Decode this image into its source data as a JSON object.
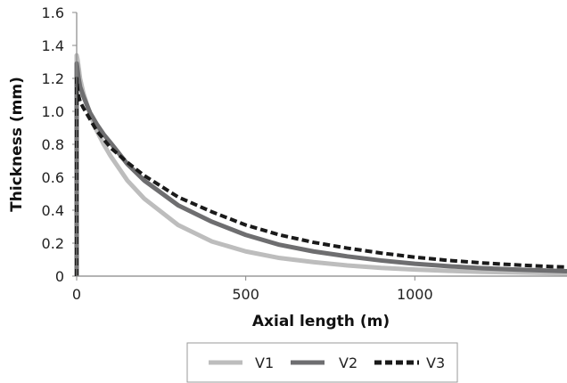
{
  "chart_data": {
    "type": "line",
    "title": "",
    "xlabel": "Axial length (m)",
    "ylabel": "Thickness (mm)",
    "xlim": [
      0,
      1450
    ],
    "ylim": [
      0,
      1.6
    ],
    "xticks": [
      0,
      500,
      1000
    ],
    "yticks": [
      0,
      0.2,
      0.4,
      0.6,
      0.8,
      1.0,
      1.2,
      1.4,
      1.6
    ],
    "ytick_labels": [
      "0",
      "0.2",
      "0.4",
      "0.6",
      "0.8",
      "1.0",
      "1.2",
      "1.4",
      "1.6"
    ],
    "grid": false,
    "legend_position": "bottom",
    "x": [
      0,
      2,
      5,
      10,
      20,
      40,
      60,
      80,
      100,
      150,
      200,
      300,
      400,
      500,
      600,
      700,
      800,
      900,
      1000,
      1100,
      1200,
      1300,
      1400,
      1450
    ],
    "series": [
      {
        "name": "V1",
        "color": "#bdbdbd",
        "style": "solid",
        "values": [
          1.34,
          1.32,
          1.28,
          1.2,
          1.11,
          0.98,
          0.88,
          0.8,
          0.73,
          0.58,
          0.47,
          0.31,
          0.21,
          0.15,
          0.11,
          0.085,
          0.065,
          0.05,
          0.04,
          0.032,
          0.026,
          0.022,
          0.018,
          0.017
        ]
      },
      {
        "name": "V2",
        "color": "#6e6e70",
        "style": "solid",
        "values": [
          1.29,
          1.26,
          1.21,
          1.15,
          1.09,
          0.99,
          0.92,
          0.86,
          0.81,
          0.68,
          0.58,
          0.43,
          0.33,
          0.25,
          0.19,
          0.15,
          0.12,
          0.095,
          0.075,
          0.06,
          0.048,
          0.04,
          0.033,
          0.03
        ]
      },
      {
        "name": "V3",
        "color": "#1a1a1a",
        "style": "dashed",
        "values": [
          1.2,
          1.15,
          1.1,
          1.06,
          1.02,
          0.95,
          0.88,
          0.83,
          0.78,
          0.69,
          0.61,
          0.48,
          0.39,
          0.31,
          0.25,
          0.205,
          0.17,
          0.14,
          0.115,
          0.095,
          0.08,
          0.068,
          0.058,
          0.055
        ]
      }
    ]
  }
}
